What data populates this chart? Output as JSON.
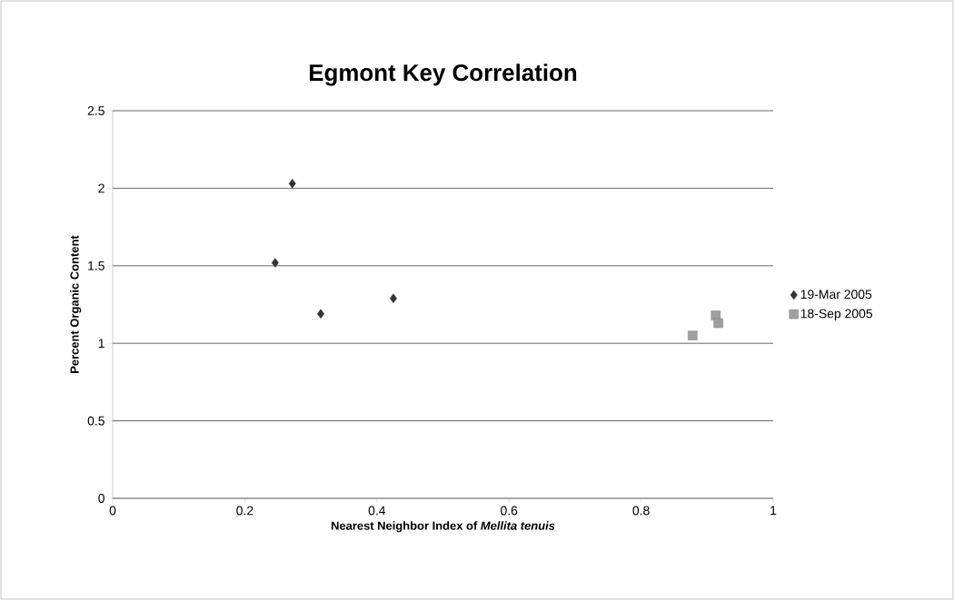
{
  "chart_data": {
    "type": "scatter",
    "title": "Egmont Key Correlation",
    "xlabel": "Nearest Neighbor Index of *Mellita tenuis*",
    "ylabel": "Percent Organic Content",
    "xlim": [
      0,
      1
    ],
    "xticks": [
      0,
      0.2,
      0.4,
      0.6,
      0.8,
      1
    ],
    "ylim": [
      0,
      2.5
    ],
    "yticks": [
      0,
      0.5,
      1,
      1.5,
      2,
      2.5
    ],
    "grid": "y",
    "legend": "right",
    "series": [
      {
        "name": "19-Mar 2005",
        "color": "#333333",
        "marker": "diamond",
        "x": [
          0.246,
          0.272,
          0.315,
          0.425
        ],
        "values": [
          1.52,
          2.03,
          1.19,
          1.29
        ]
      },
      {
        "name": "18-Sep 2005",
        "color": "#a0a0a0",
        "marker": "square",
        "x": [
          0.878,
          0.913,
          0.917
        ],
        "values": [
          1.05,
          1.18,
          1.13
        ]
      }
    ]
  }
}
